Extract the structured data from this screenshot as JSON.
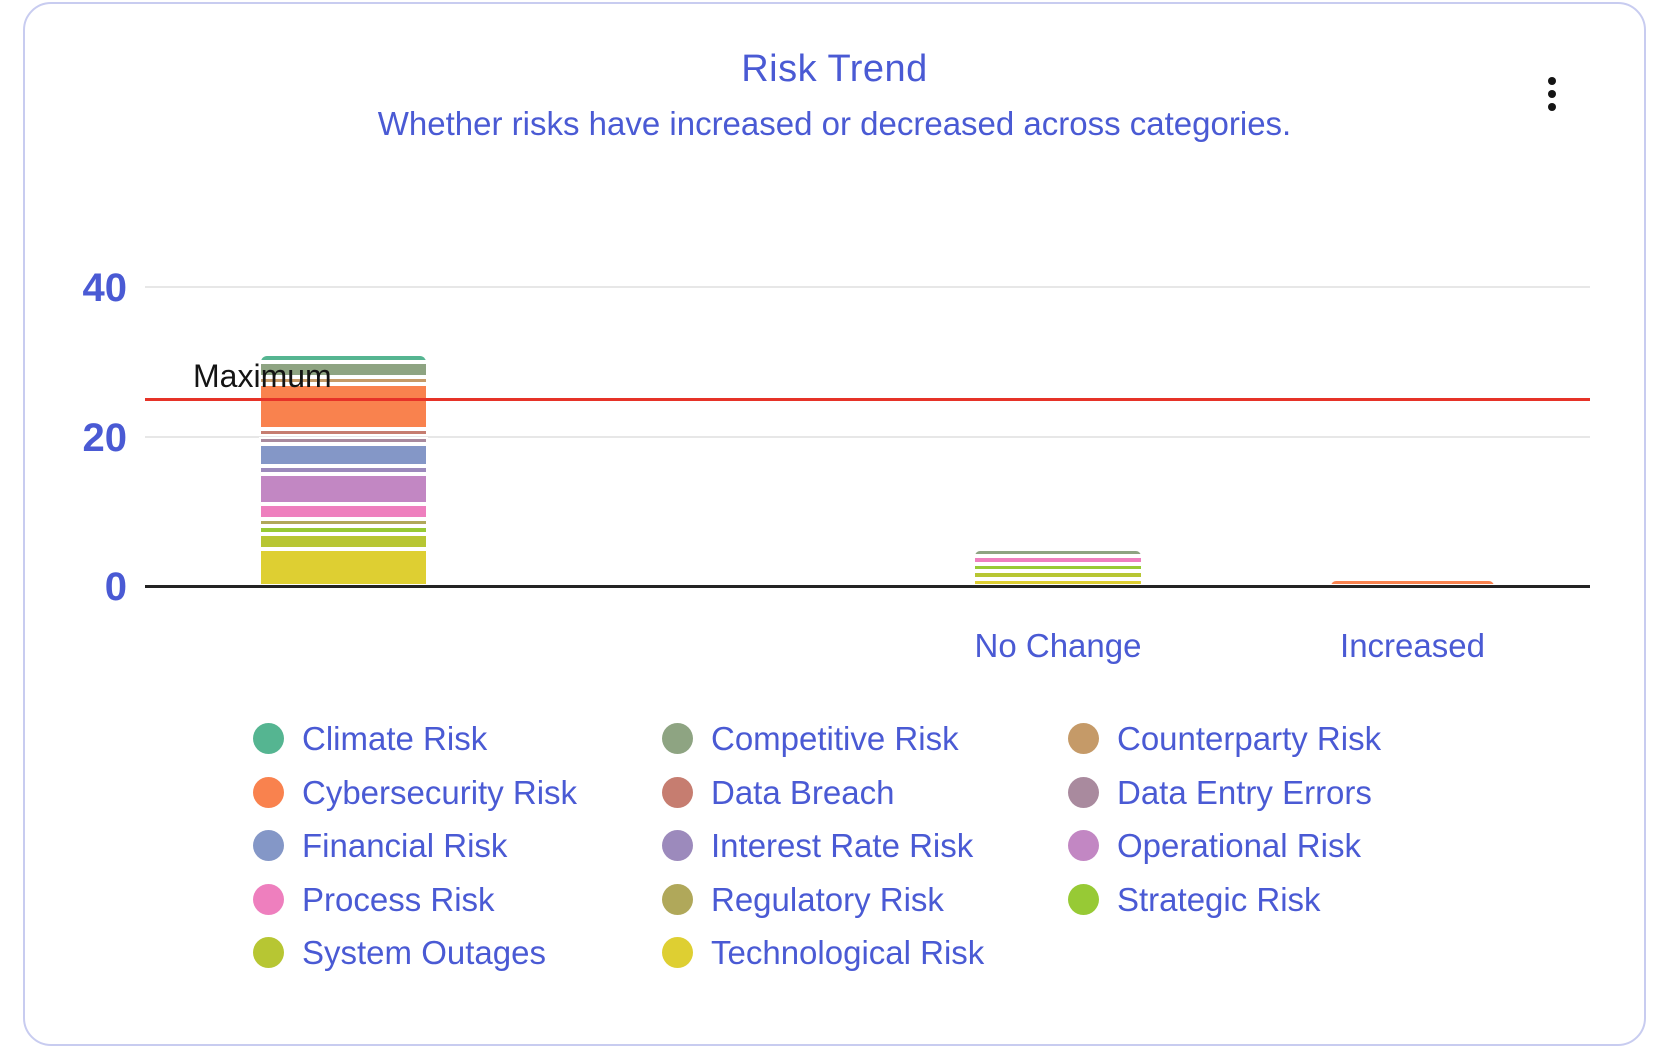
{
  "header": {
    "title": "Risk Trend",
    "subtitle": "Whether risks have increased or decreased across categories."
  },
  "menu": {
    "icon": "kebab-menu-icon"
  },
  "colors": {
    "accent_text": "#4a5ad4",
    "card_border": "#c8ccf0",
    "axis": "#232323",
    "gridline": "#e7e7e7",
    "reference_line": "#e63328",
    "reference_label": "#141414"
  },
  "chart_data": {
    "type": "bar",
    "stacked": true,
    "title": "Risk Trend",
    "subtitle": "Whether risks have increased or decreased across categories.",
    "grid": true,
    "legend_position": "bottom",
    "y_axis": {
      "ticks": [
        0,
        20,
        40
      ],
      "range": [
        0,
        42
      ]
    },
    "categories": [
      "",
      "No Change",
      "Increased"
    ],
    "bar_totals": [
      31,
      5,
      1
    ],
    "reference_line": {
      "label": "Maximum",
      "value": 25,
      "color": "#e63328"
    },
    "series": [
      {
        "name": "Climate Risk",
        "color": "#55b591",
        "values": [
          1,
          0,
          0
        ]
      },
      {
        "name": "Competitive Risk",
        "color": "#8ea482",
        "values": [
          2,
          1,
          0
        ]
      },
      {
        "name": "Counterparty Risk",
        "color": "#c59a68",
        "values": [
          1,
          0,
          0
        ]
      },
      {
        "name": "Cybersecurity Risk",
        "color": "#f9824e",
        "values": [
          6,
          0,
          1
        ]
      },
      {
        "name": "Data Breach",
        "color": "#c67d70",
        "values": [
          1,
          0,
          0
        ]
      },
      {
        "name": "Data Entry Errors",
        "color": "#a98a9e",
        "values": [
          1,
          0,
          0
        ]
      },
      {
        "name": "Financial Risk",
        "color": "#8497c7",
        "values": [
          3,
          0,
          0
        ]
      },
      {
        "name": "Interest Rate Risk",
        "color": "#9c8abc",
        "values": [
          1,
          0,
          0
        ]
      },
      {
        "name": "Operational Risk",
        "color": "#c287c3",
        "values": [
          4,
          0,
          0
        ]
      },
      {
        "name": "Process Risk",
        "color": "#ee7fbe",
        "values": [
          2,
          1,
          0
        ]
      },
      {
        "name": "Regulatory Risk",
        "color": "#b0a85a",
        "values": [
          1,
          0,
          0
        ]
      },
      {
        "name": "Strategic Risk",
        "color": "#97ca35",
        "values": [
          1,
          1,
          0
        ]
      },
      {
        "name": "System Outages",
        "color": "#b7c633",
        "values": [
          2,
          1,
          0
        ]
      },
      {
        "name": "Technological Risk",
        "color": "#decf32",
        "values": [
          5,
          1,
          0
        ]
      }
    ]
  }
}
